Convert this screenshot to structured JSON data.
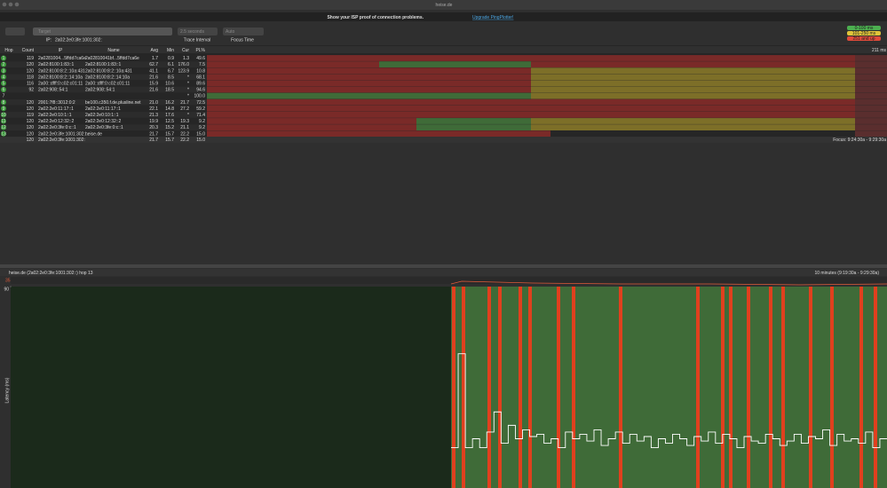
{
  "window": {
    "title": "heise.de"
  },
  "banner": {
    "text": "Show your ISP proof of connection problems.",
    "link": "Upgrade PingPlotter!"
  },
  "toolbar": {
    "target_placeholder": "Target",
    "interval": "2.5 seconds",
    "focus": "Auto",
    "interval_label": "Trace Interval",
    "focus_label": "Focus Time",
    "ip_label": "IP:",
    "ip": "2a02:2e0:3fe:1001:302:"
  },
  "legend": [
    "0-100 ms",
    "101-250 ms",
    "251 and up"
  ],
  "table": {
    "columns": [
      "Hop",
      "Count",
      "IP",
      "Name",
      "Avg",
      "Min",
      "Cur",
      "PL%"
    ],
    "scale_label": "211 ms",
    "rows": [
      [
        "1",
        "119",
        "2a0281004...5ffdd7ca6e",
        "2a02810041bf...5ffdd7ca6e",
        "1.7",
        "0.9",
        "1.3",
        "49.6"
      ],
      [
        "2",
        "120",
        "2a02:8100:1:83::1",
        "2a02:8100:1:83::1",
        "62.7",
        "6.1",
        "176.0",
        "7.5"
      ],
      [
        "3",
        "120",
        "2a02:8100:8:2::10a:431",
        "2a02:8100:8:2::10a:431",
        "41.1",
        "6.7",
        "123.9",
        "10.8"
      ],
      [
        "4",
        "118",
        "2a02:8100:8:2::14:10a",
        "2a02:8100:8:2::14:10a",
        "21.6",
        "8.5",
        "*",
        "68.1"
      ],
      [
        "5",
        "116",
        "2a00::dfff:0:c02:c01:11",
        "2a00::dfff:0:c02:c01:11",
        "15.9",
        "10.6",
        "*",
        "89.6"
      ],
      [
        "6",
        "92",
        "2a02:908::54:1",
        "2a02:908::54:1",
        "21.6",
        "18.5",
        "*",
        "94.6"
      ],
      [
        "7",
        "",
        "",
        "",
        "",
        "",
        "*",
        "100.0"
      ],
      [
        "8",
        "120",
        "2001:7f8::3012:0:2",
        "be100.c350.f.de.plusline.net",
        "21.0",
        "16.2",
        "21.7",
        "72.5"
      ],
      [
        "9",
        "120",
        "2a02:2e0:11:17::1",
        "2a02:2e0:11:17::1",
        "22.1",
        "14.8",
        "27.2",
        "59.2"
      ],
      [
        "10",
        "119",
        "2a02:2e0:10:1::1",
        "2a02:2e0:10:1::1",
        "21.3",
        "17.6",
        "*",
        "71.4"
      ],
      [
        "11",
        "120",
        "2a02:2e0:12:32::2",
        "2a02:2e0:12:32::2",
        "19.9",
        "12.5",
        "19.3",
        "9.2"
      ],
      [
        "12",
        "120",
        "2a02:2e0:3fe:0:c::1",
        "2a02:2e0:3fe:0:c::1",
        "20.3",
        "15.2",
        "21.1",
        "9.2"
      ],
      [
        "13",
        "120",
        "2a02:2e0:3fe:1001:302:...",
        "heise.de",
        "21.7",
        "15.7",
        "22.2",
        "15.0"
      ]
    ],
    "summary": [
      "120",
      "2a02:2e0:3fe:1001:302:",
      "21.7",
      "15.7",
      "22.2",
      "15.0"
    ],
    "focus_range": "Focus: 9:24:30a - 9:29:30a"
  },
  "graph": {
    "header": "heise.de (2a02:2e0:3fe:1001:302::) hop 13",
    "time_range": "10 minutes (9:19:30a - 9:29:30a)",
    "overview_label": "35",
    "y_axis_label": "Latency (ms)",
    "ylim": [
      0,
      90
    ],
    "yticks": [
      90
    ],
    "latency_ms": [
      18,
      60,
      18,
      22,
      18,
      25,
      34,
      20,
      28,
      22,
      26,
      23,
      24,
      20,
      22,
      18,
      25,
      22,
      24,
      21,
      26,
      19,
      22,
      25,
      20,
      24,
      21,
      23,
      18,
      22,
      20,
      24,
      22,
      19,
      23,
      21,
      25,
      20,
      24,
      22,
      18,
      23,
      21,
      20,
      24,
      22,
      19,
      21,
      24,
      20,
      23,
      22,
      26,
      19,
      24,
      21,
      22,
      20,
      25,
      18,
      22
    ]
  }
}
